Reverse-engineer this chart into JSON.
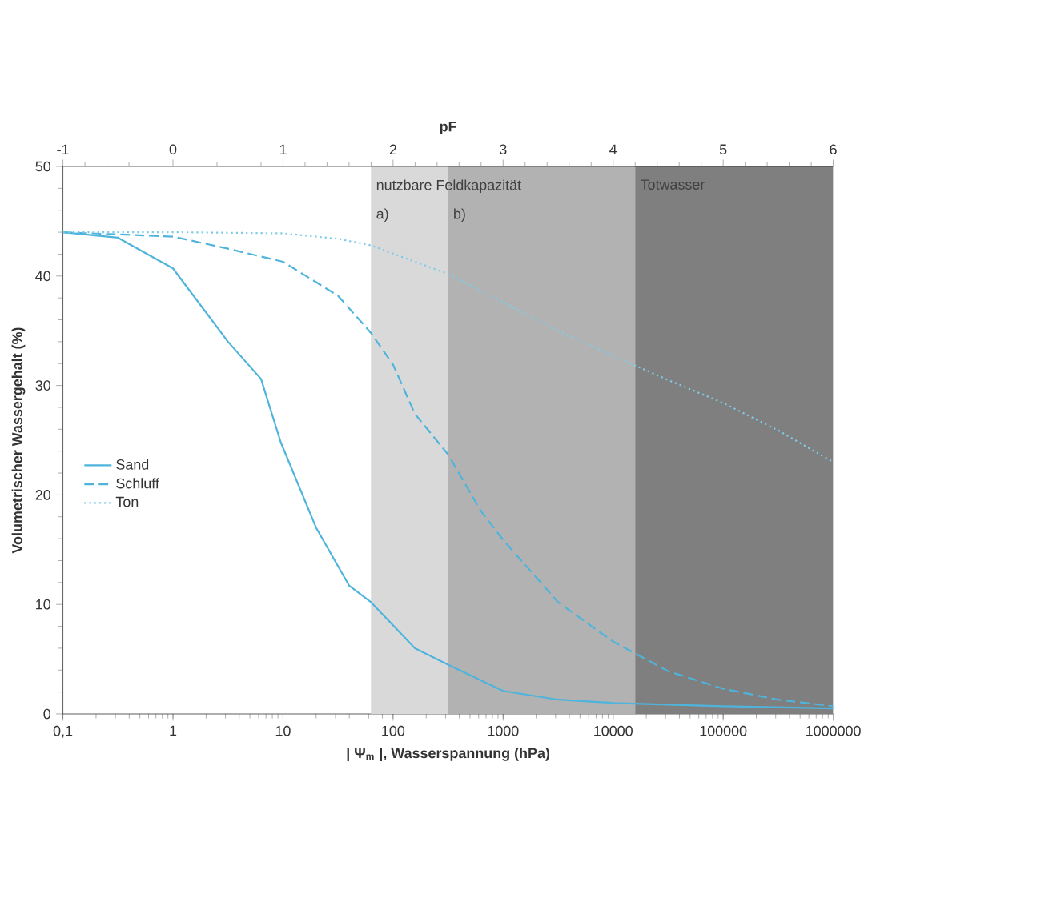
{
  "chart_data": {
    "type": "line",
    "xlabel": "| Ψ$_{m}$ |, Wasserspannung (hPa)",
    "ylabel": "Volumetrischer Wassergehalt (%)",
    "x2label": "pF",
    "log": "x",
    "xlim": [
      0.1,
      1000000
    ],
    "xticks": [
      {
        "value": 0.1,
        "label": "0,1"
      },
      1,
      10,
      100,
      1000,
      10000,
      100000,
      1000000
    ],
    "x2lim": [
      -1,
      6
    ],
    "x2ticks": [
      -1,
      0,
      1,
      2,
      3,
      4,
      5,
      6
    ],
    "ylim": [
      0,
      50
    ],
    "yticks": [
      0,
      10,
      20,
      30,
      40,
      50
    ],
    "grid": false,
    "legend": "left",
    "annotations": [
      "nutzbare Feldkapazität"
    ],
    "bands": [
      {
        "axis": "x",
        "from": 63,
        "to": 316,
        "label": "a)",
        "color": "#d9d9d9"
      },
      {
        "axis": "x",
        "from": 316,
        "to": 15849,
        "label": "b)",
        "color": "#b2b2b2"
      },
      {
        "axis": "x",
        "from": 15849,
        "to": 1000000,
        "label": "Totwasser",
        "color": "#7f7f7f"
      }
    ],
    "series": [
      {
        "name": "Sand",
        "color": "#4fb4dc",
        "line_style": "solid",
        "x": [
          0.1,
          0.316,
          1,
          3.16,
          6.31,
          9.55,
          20,
          40,
          63,
          158,
          316,
          1000,
          3162,
          10000,
          100000,
          1000000
        ],
        "values": [
          44,
          43.5,
          40.7,
          34,
          30.6,
          24.8,
          17,
          11.7,
          10.2,
          6,
          4.5,
          2.1,
          1.3,
          1.0,
          0.7,
          0.5
        ]
      },
      {
        "name": "Schluff",
        "color": "#4fb4dc",
        "line_style": "dashed",
        "x": [
          0.1,
          1,
          3.16,
          10,
          31.6,
          63,
          100,
          158,
          316,
          631,
          1000,
          3162,
          10000,
          31623,
          100000,
          316228,
          1000000
        ],
        "values": [
          44,
          43.6,
          42.5,
          41.3,
          38.2,
          34.8,
          31.9,
          27.4,
          23.7,
          18.5,
          15.9,
          10.2,
          6.6,
          3.9,
          2.3,
          1.3,
          0.7
        ]
      },
      {
        "name": "Ton",
        "color": "#7fcbe8",
        "line_style": "dotted",
        "x": [
          0.1,
          1,
          10,
          31.6,
          63,
          158,
          316,
          1000,
          3162,
          10000,
          31623,
          100000,
          316228,
          1000000
        ],
        "values": [
          44,
          44,
          43.9,
          43.4,
          42.8,
          41.3,
          40.2,
          37.6,
          35.0,
          32.7,
          30.5,
          28.4,
          25.9,
          23
        ]
      }
    ]
  }
}
